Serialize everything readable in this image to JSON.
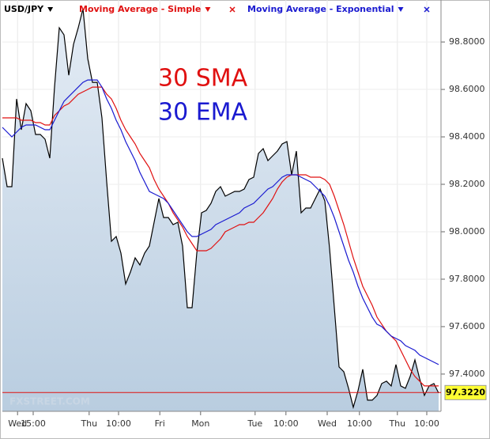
{
  "chart_data": {
    "type": "line",
    "annotations": [
      {
        "text": "30 SMA",
        "color": "#e01010"
      },
      {
        "text": "30 EMA",
        "color": "#1a1ad0"
      }
    ],
    "watermark": "FXSTREET.COM",
    "x": [
      0,
      1,
      2,
      3,
      4,
      5,
      6,
      7,
      8,
      9,
      10,
      11,
      12,
      13,
      14,
      15,
      16,
      17,
      18,
      19,
      20,
      21,
      22,
      23,
      24,
      25,
      26,
      27,
      28,
      29,
      30,
      31,
      32,
      33,
      34,
      35,
      36,
      37,
      38,
      39,
      40,
      41,
      42,
      43,
      44,
      45,
      46,
      47,
      48,
      49,
      50,
      51,
      52,
      53,
      54,
      55,
      56,
      57,
      58,
      59,
      60,
      61,
      62,
      63,
      64,
      65,
      66,
      67,
      68,
      69,
      70,
      71,
      72,
      73,
      74,
      75,
      76,
      77,
      78,
      79,
      80,
      81,
      82,
      83,
      84,
      85,
      86,
      87,
      88,
      89,
      90,
      91,
      92
    ],
    "series": [
      {
        "name": "USD/JPY",
        "color": "#000000",
        "area": true,
        "values": [
          98.31,
          98.19,
          98.19,
          98.56,
          98.43,
          98.54,
          98.51,
          98.41,
          98.41,
          98.39,
          98.31,
          98.61,
          98.86,
          98.83,
          98.66,
          98.79,
          98.86,
          98.94,
          98.73,
          98.63,
          98.63,
          98.48,
          98.21,
          97.96,
          97.98,
          97.91,
          97.78,
          97.83,
          97.89,
          97.86,
          97.91,
          97.94,
          98.04,
          98.14,
          98.06,
          98.06,
          98.03,
          98.04,
          97.94,
          97.68,
          97.68,
          97.91,
          98.08,
          98.09,
          98.12,
          98.17,
          98.19,
          98.15,
          98.16,
          98.17,
          98.17,
          98.18,
          98.22,
          98.23,
          98.33,
          98.35,
          98.3,
          98.32,
          98.34,
          98.37,
          98.38,
          98.24,
          98.34,
          98.08,
          98.1,
          98.1,
          98.14,
          98.18,
          98.13,
          97.93,
          97.68,
          97.43,
          97.41,
          97.34,
          97.26,
          97.33,
          97.42,
          97.29,
          97.29,
          97.31,
          97.36,
          97.37,
          97.35,
          97.44,
          97.35,
          97.34,
          97.39,
          97.46,
          97.38,
          97.31,
          97.35,
          97.36,
          97.32
        ]
      },
      {
        "name": "Moving Average - Simple",
        "color": "#e01010",
        "values": [
          98.48,
          98.48,
          98.48,
          98.48,
          98.47,
          98.47,
          98.47,
          98.46,
          98.46,
          98.45,
          98.45,
          98.49,
          98.51,
          98.53,
          98.54,
          98.56,
          98.58,
          98.59,
          98.6,
          98.61,
          98.61,
          98.61,
          98.58,
          98.56,
          98.52,
          98.47,
          98.43,
          98.4,
          98.37,
          98.33,
          98.3,
          98.27,
          98.22,
          98.18,
          98.15,
          98.12,
          98.08,
          98.05,
          98.02,
          97.98,
          97.95,
          97.92,
          97.92,
          97.92,
          97.93,
          97.95,
          97.97,
          98.0,
          98.01,
          98.02,
          98.03,
          98.03,
          98.04,
          98.04,
          98.06,
          98.08,
          98.11,
          98.14,
          98.18,
          98.21,
          98.23,
          98.24,
          98.24,
          98.24,
          98.24,
          98.23,
          98.23,
          98.23,
          98.22,
          98.2,
          98.15,
          98.09,
          98.03,
          97.96,
          97.89,
          97.83,
          97.77,
          97.73,
          97.69,
          97.64,
          97.61,
          97.58,
          97.56,
          97.54,
          97.5,
          97.46,
          97.42,
          97.39,
          97.37,
          97.35,
          97.35,
          97.35,
          97.35
        ]
      },
      {
        "name": "Moving Average - Exponential",
        "color": "#1a1ad0",
        "values": [
          98.44,
          98.42,
          98.4,
          98.42,
          98.44,
          98.45,
          98.45,
          98.45,
          98.44,
          98.43,
          98.43,
          98.47,
          98.51,
          98.55,
          98.57,
          98.59,
          98.61,
          98.63,
          98.64,
          98.64,
          98.64,
          98.61,
          98.56,
          98.52,
          98.47,
          98.43,
          98.38,
          98.34,
          98.3,
          98.25,
          98.21,
          98.17,
          98.16,
          98.15,
          98.14,
          98.12,
          98.09,
          98.06,
          98.03,
          98.0,
          97.98,
          97.98,
          97.99,
          98.0,
          98.01,
          98.03,
          98.04,
          98.05,
          98.06,
          98.07,
          98.08,
          98.1,
          98.11,
          98.12,
          98.14,
          98.16,
          98.18,
          98.19,
          98.21,
          98.23,
          98.24,
          98.24,
          98.24,
          98.23,
          98.22,
          98.21,
          98.19,
          98.17,
          98.15,
          98.11,
          98.06,
          98.0,
          97.94,
          97.88,
          97.83,
          97.77,
          97.72,
          97.68,
          97.64,
          97.61,
          97.6,
          97.58,
          97.56,
          97.55,
          97.54,
          97.52,
          97.51,
          97.5,
          97.48,
          97.47,
          97.46,
          97.45,
          97.44
        ]
      }
    ],
    "current_price": {
      "value": 97.322,
      "label": "97.3220",
      "color": "#e01010"
    },
    "xlim": [
      0,
      92.5
    ],
    "xticks": [
      {
        "value": 3.2,
        "label": "Wed"
      },
      {
        "value": 6.5,
        "label": "15:00"
      },
      {
        "value": 18.3,
        "label": "Thu"
      },
      {
        "value": 24.5,
        "label": "10:00"
      },
      {
        "value": 33.2,
        "label": "Fri"
      },
      {
        "value": 41.8,
        "label": "Mon"
      },
      {
        "value": 53.3,
        "label": "Tue"
      },
      {
        "value": 59.8,
        "label": "10:00"
      },
      {
        "value": 68.5,
        "label": "Wed"
      },
      {
        "value": 75.3,
        "label": "10:00"
      },
      {
        "value": 83.3,
        "label": "Thu"
      },
      {
        "value": 89.5,
        "label": "10:00"
      }
    ],
    "ylim": [
      97.243,
      98.977
    ],
    "yticks": [
      {
        "value": 97.4,
        "label": "97.4000"
      },
      {
        "value": 97.6,
        "label": "97.6000"
      },
      {
        "value": 97.8,
        "label": "97.8000"
      },
      {
        "value": 98.0,
        "label": "98.0000"
      },
      {
        "value": 98.2,
        "label": "98.2000"
      },
      {
        "value": 98.4,
        "label": "98.4000"
      },
      {
        "value": 98.6,
        "label": "98.6000"
      },
      {
        "value": 98.8,
        "label": "98.8000"
      }
    ],
    "grid": true
  }
}
